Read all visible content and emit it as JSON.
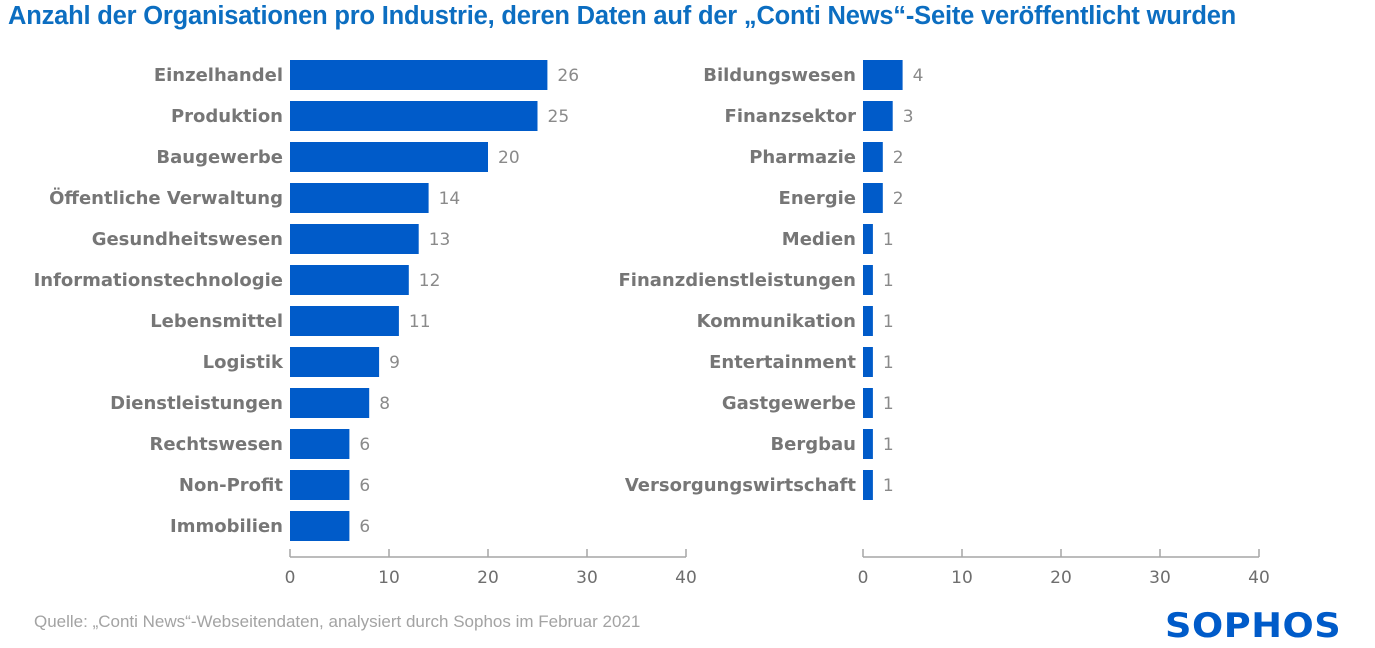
{
  "title": "Anzahl der Organisationen pro Industrie, deren Daten auf der „Conti News“-Seite veröffentlicht wurden",
  "source": "Quelle: „Conti News“-Webseitendaten, analysiert durch Sophos im Februar 2021",
  "logo": "SOPHOS",
  "colors": {
    "bar": "#005bc9",
    "title": "#0c6ec1",
    "label": "#767676"
  },
  "chart_data": [
    {
      "type": "bar",
      "orientation": "horizontal",
      "title": "",
      "xlabel": "",
      "ylabel": "",
      "xlim": [
        0,
        40
      ],
      "ticks": [
        0,
        10,
        20,
        30,
        40
      ],
      "grid": false,
      "categories": [
        "Einzelhandel",
        "Produktion",
        "Baugewerbe",
        "Öffentliche Verwaltung",
        "Gesundheitswesen",
        "Informationstechnologie",
        "Lebensmittel",
        "Logistik",
        "Dienstleistungen",
        "Rechtswesen",
        "Non-Profit",
        "Immobilien"
      ],
      "values": [
        26,
        25,
        20,
        14,
        13,
        12,
        11,
        9,
        8,
        6,
        6,
        6
      ]
    },
    {
      "type": "bar",
      "orientation": "horizontal",
      "title": "",
      "xlabel": "",
      "ylabel": "",
      "xlim": [
        0,
        40
      ],
      "ticks": [
        0,
        10,
        20,
        30,
        40
      ],
      "grid": false,
      "categories": [
        "Bildungswesen",
        "Finanzsektor",
        "Pharmazie",
        "Energie",
        "Medien",
        "Finanzdienstleistungen",
        "Kommunikation",
        "Entertainment",
        "Gastgewerbe",
        "Bergbau",
        "Versorgungswirtschaft"
      ],
      "values": [
        4,
        3,
        2,
        2,
        1,
        1,
        1,
        1,
        1,
        1,
        1
      ]
    }
  ]
}
